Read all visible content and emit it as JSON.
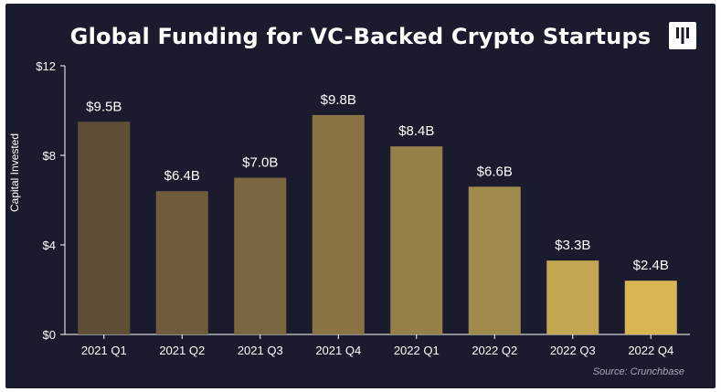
{
  "chart_data": {
    "type": "bar",
    "title": "Global Funding for VC-Backed Crypto Startups",
    "ylabel": "Capital Invested",
    "xlabel": "",
    "categories": [
      "2021 Q1",
      "2021 Q2",
      "2021 Q3",
      "2021 Q4",
      "2022 Q1",
      "2022 Q2",
      "2022 Q3",
      "2022 Q4"
    ],
    "values": [
      9.5,
      6.4,
      7.0,
      9.8,
      8.4,
      6.6,
      3.3,
      2.4
    ],
    "value_labels": [
      "$9.5B",
      "$6.4B",
      "$7.0B",
      "$9.8B",
      "$8.4B",
      "$6.6B",
      "$3.3B",
      "$2.4B"
    ],
    "bar_colors": [
      "#5e4e36",
      "#6e5c3c",
      "#7a6640",
      "#8a7444",
      "#95804a",
      "#a08a4c",
      "#c2a651",
      "#d9b554"
    ],
    "ylim": [
      0,
      12
    ],
    "yticks": [
      0,
      4,
      8,
      12
    ],
    "ytick_labels": [
      "$0",
      "$4",
      "$8",
      "$12"
    ],
    "grid": false,
    "source": "Source: Crunchbase"
  },
  "colors": {
    "background": "#1a1c2e",
    "text": "#ffffff",
    "axis": "#ffffff"
  },
  "logo": {
    "icon": "bars-logo-icon"
  }
}
